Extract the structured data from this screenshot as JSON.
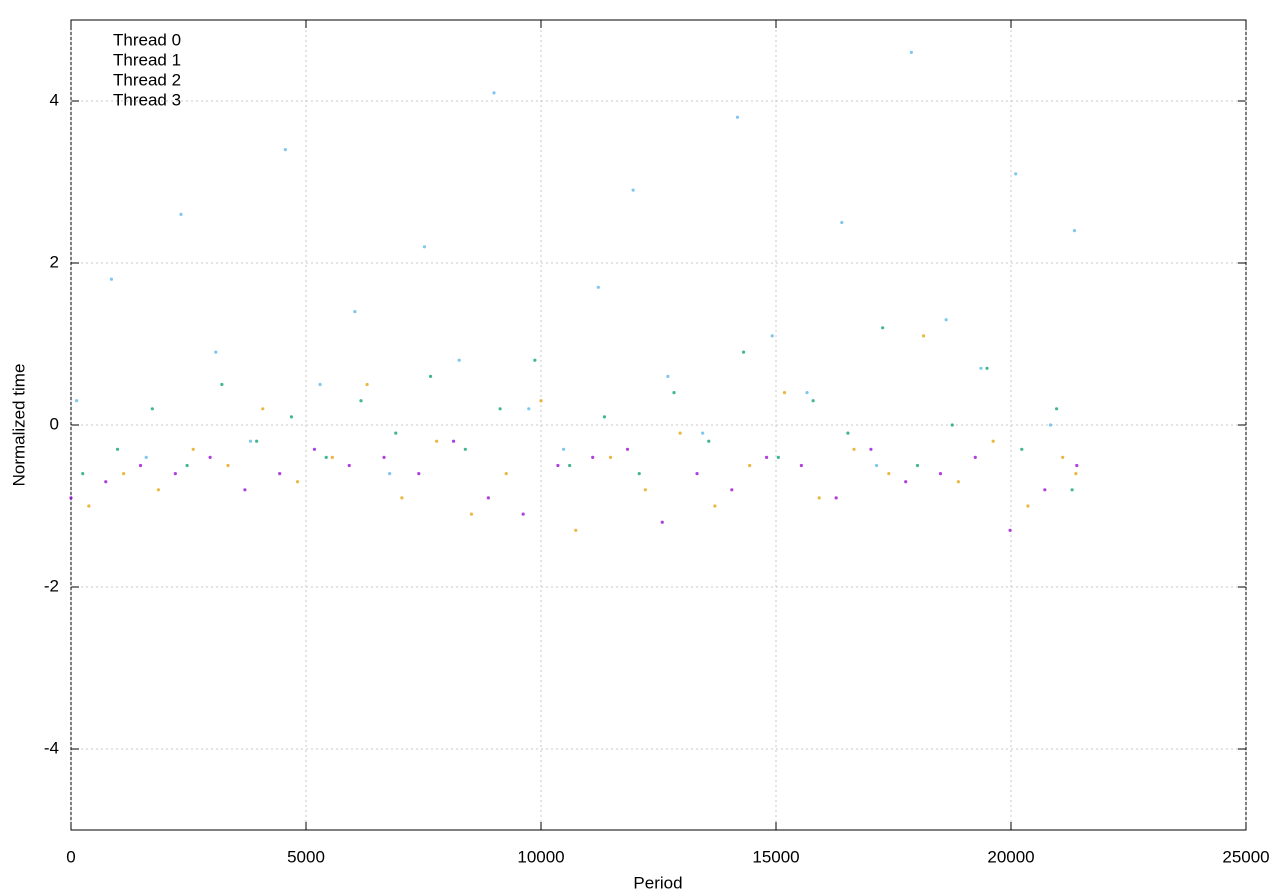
{
  "chart_data": {
    "type": "scatter",
    "xlabel": "Period",
    "ylabel": "Normalized time",
    "xlim": [
      0,
      25000
    ],
    "ylim": [
      -5,
      5
    ],
    "xticks": [
      0,
      5000,
      10000,
      15000,
      20000,
      25000
    ],
    "yticks": [
      -4,
      -2,
      0,
      2,
      4
    ],
    "grid": true,
    "legend": "top-left",
    "series": [
      {
        "name": "Thread 0",
        "color": "#9400d3",
        "x": [
          0,
          740,
          1480,
          2220,
          2960,
          3700,
          4440,
          5180,
          5920,
          6660,
          7400,
          8140,
          8880,
          9620,
          10360,
          11100,
          11840,
          12580,
          13320,
          14060,
          14800,
          15540,
          16280,
          17020,
          17760,
          18500,
          19240,
          19980,
          20720,
          21400
        ],
        "values": [
          -0.9,
          -0.7,
          -0.5,
          -0.6,
          -0.4,
          -0.8,
          -0.6,
          -0.3,
          -0.5,
          -0.4,
          -0.6,
          -0.2,
          -0.9,
          -1.1,
          -0.5,
          -0.4,
          -0.3,
          -1.2,
          -0.6,
          -0.8,
          -0.4,
          -0.5,
          -0.9,
          -0.3,
          -0.7,
          -0.6,
          -0.4,
          -1.3,
          -0.8,
          -0.5
        ]
      },
      {
        "name": "Thread 1",
        "color": "#009e73",
        "x": [
          250,
          990,
          1730,
          2470,
          3210,
          3950,
          4690,
          5430,
          6170,
          6910,
          7650,
          8390,
          9130,
          9870,
          10610,
          11350,
          12090,
          12830,
          13570,
          14310,
          15050,
          15790,
          16530,
          17270,
          18010,
          18750,
          19490,
          20230,
          20970,
          21300
        ],
        "values": [
          -0.6,
          -0.3,
          0.2,
          -0.5,
          0.5,
          -0.2,
          0.1,
          -0.4,
          0.3,
          -0.1,
          0.6,
          -0.3,
          0.2,
          0.8,
          -0.5,
          0.1,
          -0.6,
          0.4,
          -0.2,
          0.9,
          -0.4,
          0.3,
          -0.1,
          1.2,
          -0.5,
          0.0,
          0.7,
          -0.3,
          0.2,
          -0.8
        ]
      },
      {
        "name": "Thread 2",
        "color": "#56b4e9",
        "x": [
          120,
          860,
          1600,
          2340,
          3080,
          3820,
          4560,
          5300,
          6040,
          6780,
          7520,
          8260,
          9000,
          9740,
          10480,
          11220,
          11960,
          12700,
          13440,
          14180,
          14920,
          15660,
          16400,
          17140,
          17880,
          18620,
          19360,
          20100,
          20840,
          21350
        ],
        "values": [
          0.3,
          1.8,
          -0.4,
          2.6,
          0.9,
          -0.2,
          3.4,
          0.5,
          1.4,
          -0.6,
          2.2,
          0.8,
          4.1,
          0.2,
          -0.3,
          1.7,
          2.9,
          0.6,
          -0.1,
          3.8,
          1.1,
          0.4,
          2.5,
          -0.5,
          4.6,
          1.3,
          0.7,
          3.1,
          0.0,
          2.4
        ]
      },
      {
        "name": "Thread 3",
        "color": "#e69f00",
        "x": [
          380,
          1120,
          1860,
          2600,
          3340,
          4080,
          4820,
          5560,
          6300,
          7040,
          7780,
          8520,
          9260,
          10000,
          10740,
          11480,
          12220,
          12960,
          13700,
          14440,
          15180,
          15920,
          16660,
          17400,
          18140,
          18880,
          19620,
          20360,
          21100,
          21380
        ],
        "values": [
          -1.0,
          -0.6,
          -0.8,
          -0.3,
          -0.5,
          0.2,
          -0.7,
          -0.4,
          0.5,
          -0.9,
          -0.2,
          -1.1,
          -0.6,
          0.3,
          -1.3,
          -0.4,
          -0.8,
          -0.1,
          -1.0,
          -0.5,
          0.4,
          -0.9,
          -0.3,
          -0.6,
          1.1,
          -0.7,
          -0.2,
          -1.0,
          -0.4,
          -0.6
        ]
      }
    ]
  }
}
